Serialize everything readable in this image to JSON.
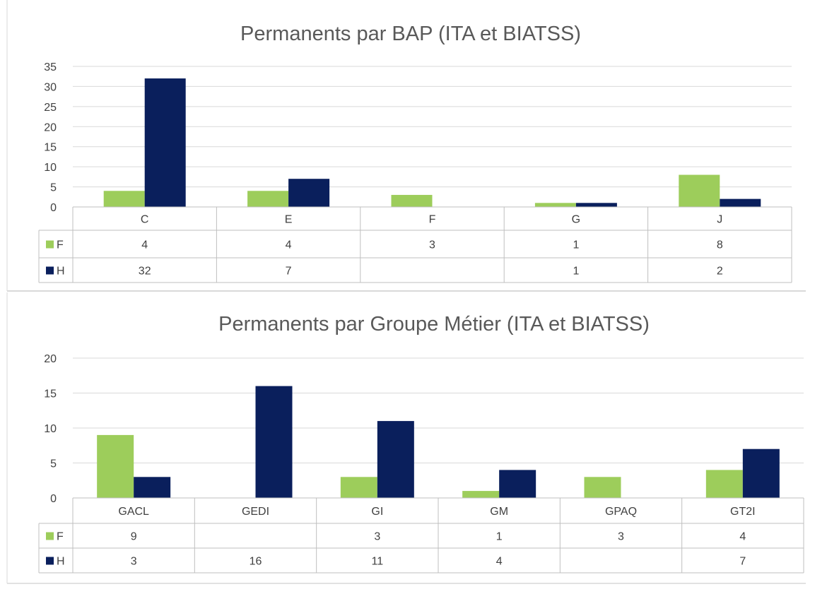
{
  "colors": {
    "F": "#9dcd5b",
    "H": "#0a1f5c",
    "grid": "#d9d9d9",
    "table": "#bfbfbf",
    "text": "#404040",
    "title": "#595959"
  },
  "chart_data": [
    {
      "type": "bar",
      "title": "Permanents par BAP (ITA et BIATSS)",
      "categories": [
        "C",
        "E",
        "F",
        "G",
        "J"
      ],
      "ylim": [
        0,
        35
      ],
      "yticks": [
        0,
        5,
        10,
        15,
        20,
        25,
        30,
        35
      ],
      "xlabel": "",
      "ylabel": "",
      "grid": true,
      "legend": "data-table",
      "series": [
        {
          "name": "F",
          "values": [
            4,
            4,
            3,
            1,
            8
          ]
        },
        {
          "name": "H",
          "values": [
            32,
            7,
            null,
            1,
            2
          ]
        }
      ]
    },
    {
      "type": "bar",
      "title": "Permanents par Groupe Métier (ITA et BIATSS)",
      "categories": [
        "GACL",
        "GEDI",
        "GI",
        "GM",
        "GPAQ",
        "GT2I"
      ],
      "ylim": [
        0,
        20
      ],
      "yticks": [
        0,
        5,
        10,
        15,
        20
      ],
      "xlabel": "",
      "ylabel": "",
      "grid": true,
      "legend": "data-table",
      "series": [
        {
          "name": "F",
          "values": [
            9,
            null,
            3,
            1,
            3,
            4
          ]
        },
        {
          "name": "H",
          "values": [
            3,
            16,
            11,
            4,
            null,
            7
          ]
        }
      ]
    }
  ]
}
